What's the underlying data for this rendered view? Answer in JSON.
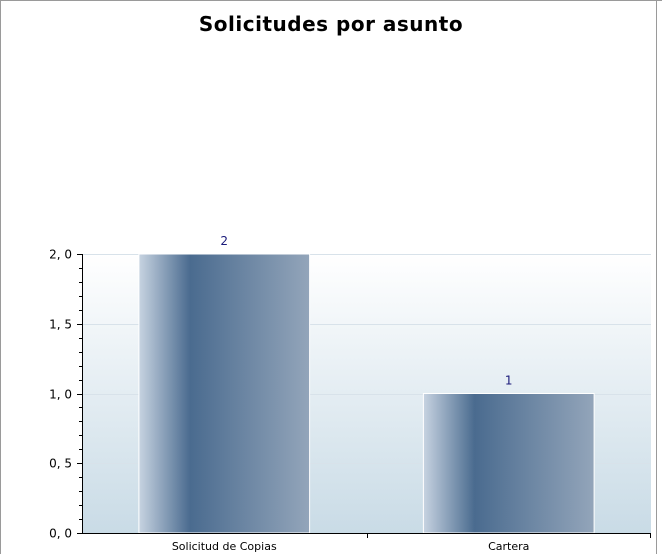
{
  "chart_data": {
    "type": "bar",
    "title": "Solicitudes por asunto",
    "categories": [
      "Solicitud de Copias",
      "Cartera"
    ],
    "values": [
      2,
      1
    ],
    "value_labels": [
      "2",
      "1"
    ],
    "ylim": [
      0,
      2
    ],
    "yticks": [
      0,
      0.5,
      1,
      1.5,
      2
    ],
    "ytick_labels": [
      "0, 0",
      "0, 5",
      "1, 0",
      "1, 5",
      "2, 0"
    ],
    "xlabel": "",
    "ylabel": "",
    "grid": true,
    "legend": "none"
  },
  "colors": {
    "bar_dark": "#4a6b8f",
    "bar_light": "#c7d3e1",
    "plot_bg_top": "#ffffff",
    "plot_bg_bottom": "#c9dbe6",
    "value_label": "#1a1a7a",
    "frame": "#9a9a9a",
    "axis": "#000000"
  }
}
